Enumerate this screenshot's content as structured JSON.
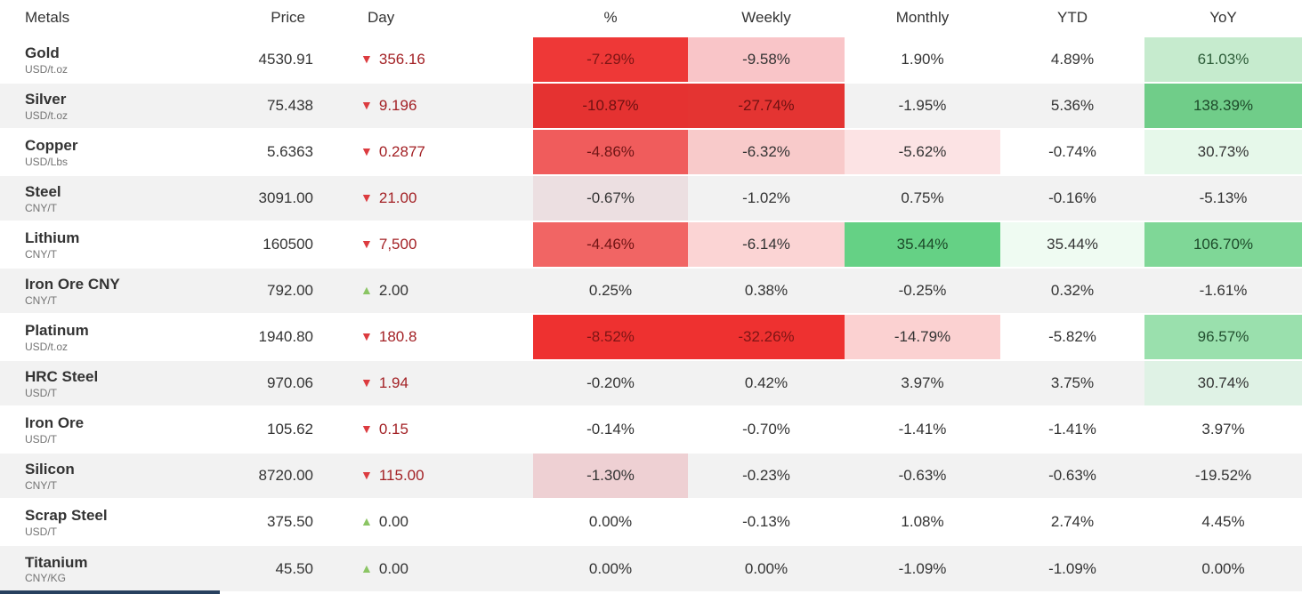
{
  "colors": {
    "row_alt_bg": "#f2f2f2",
    "header_border": "#d5d5d5",
    "down_arrow": "#dc3b3f",
    "down_value_text": "#a32125",
    "up_arrow": "#8bc564",
    "strong_red_bg": "#ee3837",
    "strong_green_bg": "#70cd89",
    "partial_bottom_bar": "#27405f"
  },
  "table": {
    "columns": [
      {
        "key": "metal",
        "label": "Metals"
      },
      {
        "key": "price",
        "label": "Price"
      },
      {
        "key": "day",
        "label": "Day"
      },
      {
        "key": "pct",
        "label": "%"
      },
      {
        "key": "weekly",
        "label": "Weekly"
      },
      {
        "key": "monthly",
        "label": "Monthly"
      },
      {
        "key": "ytd",
        "label": "YTD"
      },
      {
        "key": "yoy",
        "label": "YoY"
      }
    ],
    "rows": [
      {
        "name": "Gold",
        "unit": "USD/t.oz",
        "price": "4530.91",
        "day": {
          "dir": "down",
          "value": "356.16"
        },
        "pct": {
          "text": "-7.29%",
          "bg": "#ee3837",
          "fg": "#7e1515"
        },
        "weekly": {
          "text": "-9.58%",
          "bg": "#f9c5c8",
          "fg": "#333333"
        },
        "monthly": {
          "text": "1.90%",
          "bg": "#ffffff",
          "fg": "#333333"
        },
        "ytd": {
          "text": "4.89%",
          "bg": "#ffffff",
          "fg": "#333333"
        },
        "yoy": {
          "text": "61.03%",
          "bg": "#c6ebce",
          "fg": "#2c5c38"
        }
      },
      {
        "name": "Silver",
        "unit": "USD/t.oz",
        "price": "75.438",
        "day": {
          "dir": "down",
          "value": "9.196"
        },
        "pct": {
          "text": "-10.87%",
          "bg": "#e53231",
          "fg": "#6f1111"
        },
        "weekly": {
          "text": "-27.74%",
          "bg": "#e43432",
          "fg": "#6f1111"
        },
        "monthly": {
          "text": "-1.95%",
          "bg": null,
          "fg": "#333333"
        },
        "ytd": {
          "text": "5.36%",
          "bg": null,
          "fg": "#333333"
        },
        "yoy": {
          "text": "138.39%",
          "bg": "#70cd89",
          "fg": "#1d4a2a"
        }
      },
      {
        "name": "Copper",
        "unit": "USD/Lbs",
        "price": "5.6363",
        "day": {
          "dir": "down",
          "value": "0.2877"
        },
        "pct": {
          "text": "-4.86%",
          "bg": "#f05c5c",
          "fg": "#6e1515"
        },
        "weekly": {
          "text": "-6.32%",
          "bg": "#f8caca",
          "fg": "#333333"
        },
        "monthly": {
          "text": "-5.62%",
          "bg": "#fce3e4",
          "fg": "#333333"
        },
        "ytd": {
          "text": "-0.74%",
          "bg": "#ffffff",
          "fg": "#333333"
        },
        "yoy": {
          "text": "30.73%",
          "bg": "#e6f8ea",
          "fg": "#333333"
        }
      },
      {
        "name": "Steel",
        "unit": "CNY/T",
        "price": "3091.00",
        "day": {
          "dir": "down",
          "value": "21.00"
        },
        "pct": {
          "text": "-0.67%",
          "bg": "#ecdfe1",
          "fg": "#333333"
        },
        "weekly": {
          "text": "-1.02%",
          "bg": null,
          "fg": "#333333"
        },
        "monthly": {
          "text": "0.75%",
          "bg": null,
          "fg": "#333333"
        },
        "ytd": {
          "text": "-0.16%",
          "bg": null,
          "fg": "#333333"
        },
        "yoy": {
          "text": "-5.13%",
          "bg": null,
          "fg": "#333333"
        }
      },
      {
        "name": "Lithium",
        "unit": "CNY/T",
        "price": "160500",
        "day": {
          "dir": "down",
          "value": "7,500"
        },
        "pct": {
          "text": "-4.46%",
          "bg": "#f16564",
          "fg": "#701414"
        },
        "weekly": {
          "text": "-6.14%",
          "bg": "#fbd4d4",
          "fg": "#333333"
        },
        "monthly": {
          "text": "35.44%",
          "bg": "#65d185",
          "fg": "#1c4929"
        },
        "ytd": {
          "text": "35.44%",
          "bg": "#effbf2",
          "fg": "#333333"
        },
        "yoy": {
          "text": "106.70%",
          "bg": "#7fd797",
          "fg": "#1d4a2a"
        }
      },
      {
        "name": "Iron Ore CNY",
        "unit": "CNY/T",
        "price": "792.00",
        "day": {
          "dir": "up",
          "value": "2.00"
        },
        "pct": {
          "text": "0.25%",
          "bg": null,
          "fg": "#333333"
        },
        "weekly": {
          "text": "0.38%",
          "bg": null,
          "fg": "#333333"
        },
        "monthly": {
          "text": "-0.25%",
          "bg": null,
          "fg": "#333333"
        },
        "ytd": {
          "text": "0.32%",
          "bg": null,
          "fg": "#333333"
        },
        "yoy": {
          "text": "-1.61%",
          "bg": null,
          "fg": "#333333"
        }
      },
      {
        "name": "Platinum",
        "unit": "USD/t.oz",
        "price": "1940.80",
        "day": {
          "dir": "down",
          "value": "180.8"
        },
        "pct": {
          "text": "-8.52%",
          "bg": "#ee3130",
          "fg": "#7e1515"
        },
        "weekly": {
          "text": "-32.26%",
          "bg": "#ee3130",
          "fg": "#7e1515"
        },
        "monthly": {
          "text": "-14.79%",
          "bg": "#fbd1d1",
          "fg": "#333333"
        },
        "ytd": {
          "text": "-5.82%",
          "bg": "#ffffff",
          "fg": "#333333"
        },
        "yoy": {
          "text": "96.57%",
          "bg": "#9ae0ad",
          "fg": "#234f30"
        }
      },
      {
        "name": "HRC Steel",
        "unit": "USD/T",
        "price": "970.06",
        "day": {
          "dir": "down",
          "value": "1.94"
        },
        "pct": {
          "text": "-0.20%",
          "bg": null,
          "fg": "#333333"
        },
        "weekly": {
          "text": "0.42%",
          "bg": null,
          "fg": "#333333"
        },
        "monthly": {
          "text": "3.97%",
          "bg": null,
          "fg": "#333333"
        },
        "ytd": {
          "text": "3.75%",
          "bg": null,
          "fg": "#333333"
        },
        "yoy": {
          "text": "30.74%",
          "bg": "#dff2e5",
          "fg": "#333333"
        }
      },
      {
        "name": "Iron Ore",
        "unit": "USD/T",
        "price": "105.62",
        "day": {
          "dir": "down",
          "value": "0.15"
        },
        "pct": {
          "text": "-0.14%",
          "bg": null,
          "fg": "#333333"
        },
        "weekly": {
          "text": "-0.70%",
          "bg": null,
          "fg": "#333333"
        },
        "monthly": {
          "text": "-1.41%",
          "bg": null,
          "fg": "#333333"
        },
        "ytd": {
          "text": "-1.41%",
          "bg": null,
          "fg": "#333333"
        },
        "yoy": {
          "text": "3.97%",
          "bg": null,
          "fg": "#333333"
        }
      },
      {
        "name": "Silicon",
        "unit": "CNY/T",
        "price": "8720.00",
        "day": {
          "dir": "down",
          "value": "115.00"
        },
        "pct": {
          "text": "-1.30%",
          "bg": "#eed0d3",
          "fg": "#333333"
        },
        "weekly": {
          "text": "-0.23%",
          "bg": null,
          "fg": "#333333"
        },
        "monthly": {
          "text": "-0.63%",
          "bg": null,
          "fg": "#333333"
        },
        "ytd": {
          "text": "-0.63%",
          "bg": null,
          "fg": "#333333"
        },
        "yoy": {
          "text": "-19.52%",
          "bg": null,
          "fg": "#333333"
        }
      },
      {
        "name": "Scrap Steel",
        "unit": "USD/T",
        "price": "375.50",
        "day": {
          "dir": "up",
          "value": "0.00"
        },
        "pct": {
          "text": "0.00%",
          "bg": null,
          "fg": "#333333"
        },
        "weekly": {
          "text": "-0.13%",
          "bg": null,
          "fg": "#333333"
        },
        "monthly": {
          "text": "1.08%",
          "bg": null,
          "fg": "#333333"
        },
        "ytd": {
          "text": "2.74%",
          "bg": null,
          "fg": "#333333"
        },
        "yoy": {
          "text": "4.45%",
          "bg": null,
          "fg": "#333333"
        }
      },
      {
        "name": "Titanium",
        "unit": "CNY/KG",
        "price": "45.50",
        "day": {
          "dir": "up",
          "value": "0.00"
        },
        "pct": {
          "text": "0.00%",
          "bg": null,
          "fg": "#333333"
        },
        "weekly": {
          "text": "0.00%",
          "bg": null,
          "fg": "#333333"
        },
        "monthly": {
          "text": "-1.09%",
          "bg": null,
          "fg": "#333333"
        },
        "ytd": {
          "text": "-1.09%",
          "bg": null,
          "fg": "#333333"
        },
        "yoy": {
          "text": "0.00%",
          "bg": null,
          "fg": "#333333"
        }
      }
    ]
  }
}
